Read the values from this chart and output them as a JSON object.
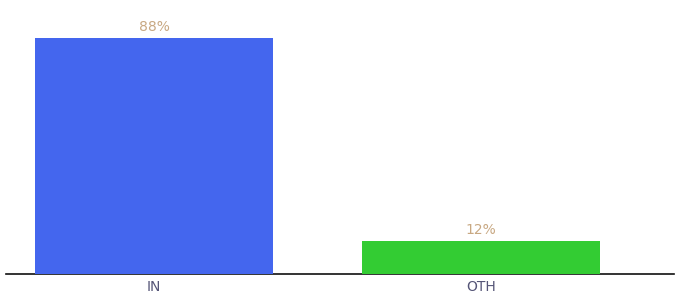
{
  "categories": [
    "IN",
    "OTH"
  ],
  "values": [
    88,
    12
  ],
  "bar_colors": [
    "#4466ee",
    "#33cc33"
  ],
  "label_texts": [
    "88%",
    "12%"
  ],
  "label_color": "#c8a882",
  "ylabel": "",
  "ylim": [
    0,
    100
  ],
  "background_color": "#ffffff",
  "bar_width": 0.32,
  "tick_fontsize": 10,
  "label_fontsize": 10,
  "spine_color": "#111111",
  "x_positions": [
    0.28,
    0.72
  ]
}
